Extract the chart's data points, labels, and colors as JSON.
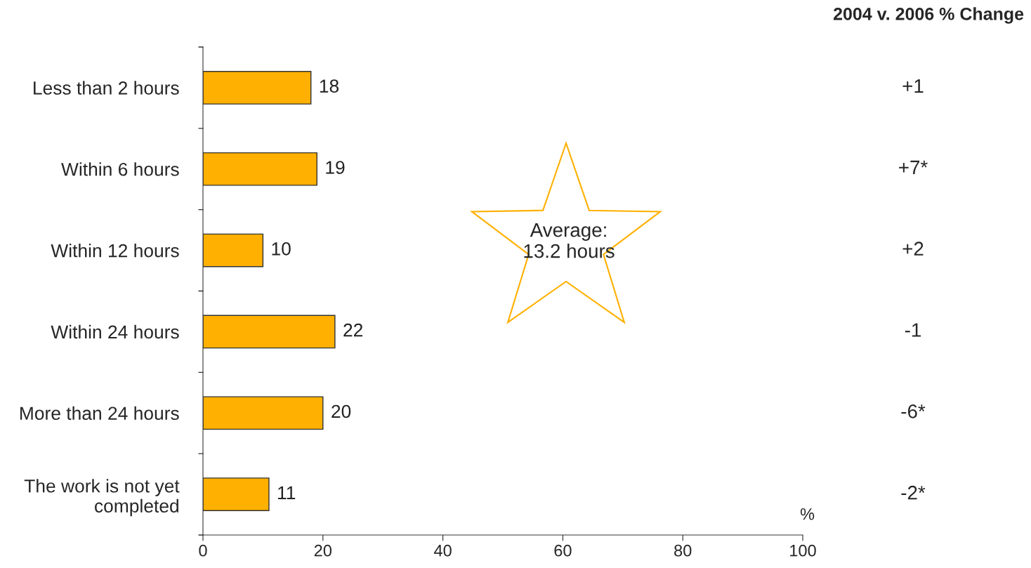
{
  "chart_data": {
    "type": "bar",
    "orientation": "horizontal",
    "categories": [
      "Less than 2 hours",
      "Within 6 hours",
      "Within 12 hours",
      "Within 24 hours",
      "More than 24 hours",
      "The work is not yet\ncompleted"
    ],
    "values": [
      18,
      19,
      10,
      22,
      20,
      11
    ],
    "color": "#ffb000",
    "data_labels": true,
    "xlim": [
      0,
      100
    ],
    "xticks": [
      0,
      20,
      40,
      60,
      80,
      100
    ],
    "xlabel": "%",
    "grid": false,
    "annotations": [
      "2004 v. 2006 % Change",
      "Average:\n13.2 hours",
      "+1",
      "+7*",
      "+2",
      "-1",
      "-6*",
      "-2*"
    ]
  }
}
